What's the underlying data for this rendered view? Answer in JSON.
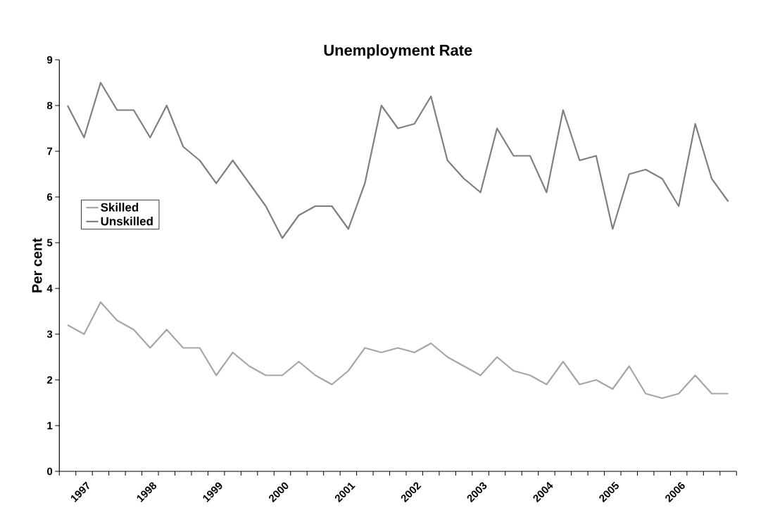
{
  "chart_data": {
    "type": "line",
    "title": "Unemployment Rate",
    "ylabel": "Per cent",
    "categories": [
      null,
      "1997",
      null,
      null,
      null,
      "1998",
      null,
      null,
      null,
      "1999",
      null,
      null,
      null,
      "2000",
      null,
      null,
      null,
      "2001",
      null,
      null,
      null,
      "2002",
      null,
      null,
      null,
      "2003",
      null,
      null,
      null,
      "2004",
      null,
      null,
      null,
      "2005",
      null,
      null,
      null,
      "2006",
      null,
      null,
      null
    ],
    "series": [
      {
        "name": "Skilled",
        "color": "#a6a6a6",
        "values": [
          3.2,
          3.0,
          3.7,
          3.3,
          3.1,
          2.7,
          3.1,
          2.7,
          2.7,
          2.1,
          2.6,
          2.3,
          2.1,
          2.1,
          2.4,
          2.1,
          1.9,
          2.2,
          2.7,
          2.6,
          2.7,
          2.6,
          2.8,
          2.5,
          2.3,
          2.1,
          2.5,
          2.2,
          2.1,
          1.9,
          2.4,
          1.9,
          2.0,
          1.8,
          2.3,
          1.7,
          1.6,
          1.7,
          2.1,
          1.7,
          1.7
        ]
      },
      {
        "name": "Unskilled",
        "color": "#7f7f7f",
        "values": [
          8.0,
          7.3,
          8.5,
          7.9,
          7.9,
          7.3,
          8.0,
          7.1,
          6.8,
          6.3,
          6.8,
          6.3,
          5.8,
          5.1,
          5.6,
          5.8,
          5.8,
          5.3,
          6.3,
          8.0,
          7.5,
          7.6,
          8.2,
          6.8,
          6.4,
          6.1,
          7.5,
          6.9,
          6.9,
          6.1,
          7.9,
          6.8,
          6.9,
          5.3,
          6.5,
          6.6,
          6.4,
          5.8,
          7.6,
          6.4,
          5.9
        ]
      }
    ],
    "ylim": [
      0,
      9
    ],
    "yticks": [
      0,
      1,
      2,
      3,
      4,
      5,
      6,
      7,
      8,
      9
    ],
    "legend": "left",
    "grid": false,
    "marker": "none",
    "line_style": "solid"
  }
}
